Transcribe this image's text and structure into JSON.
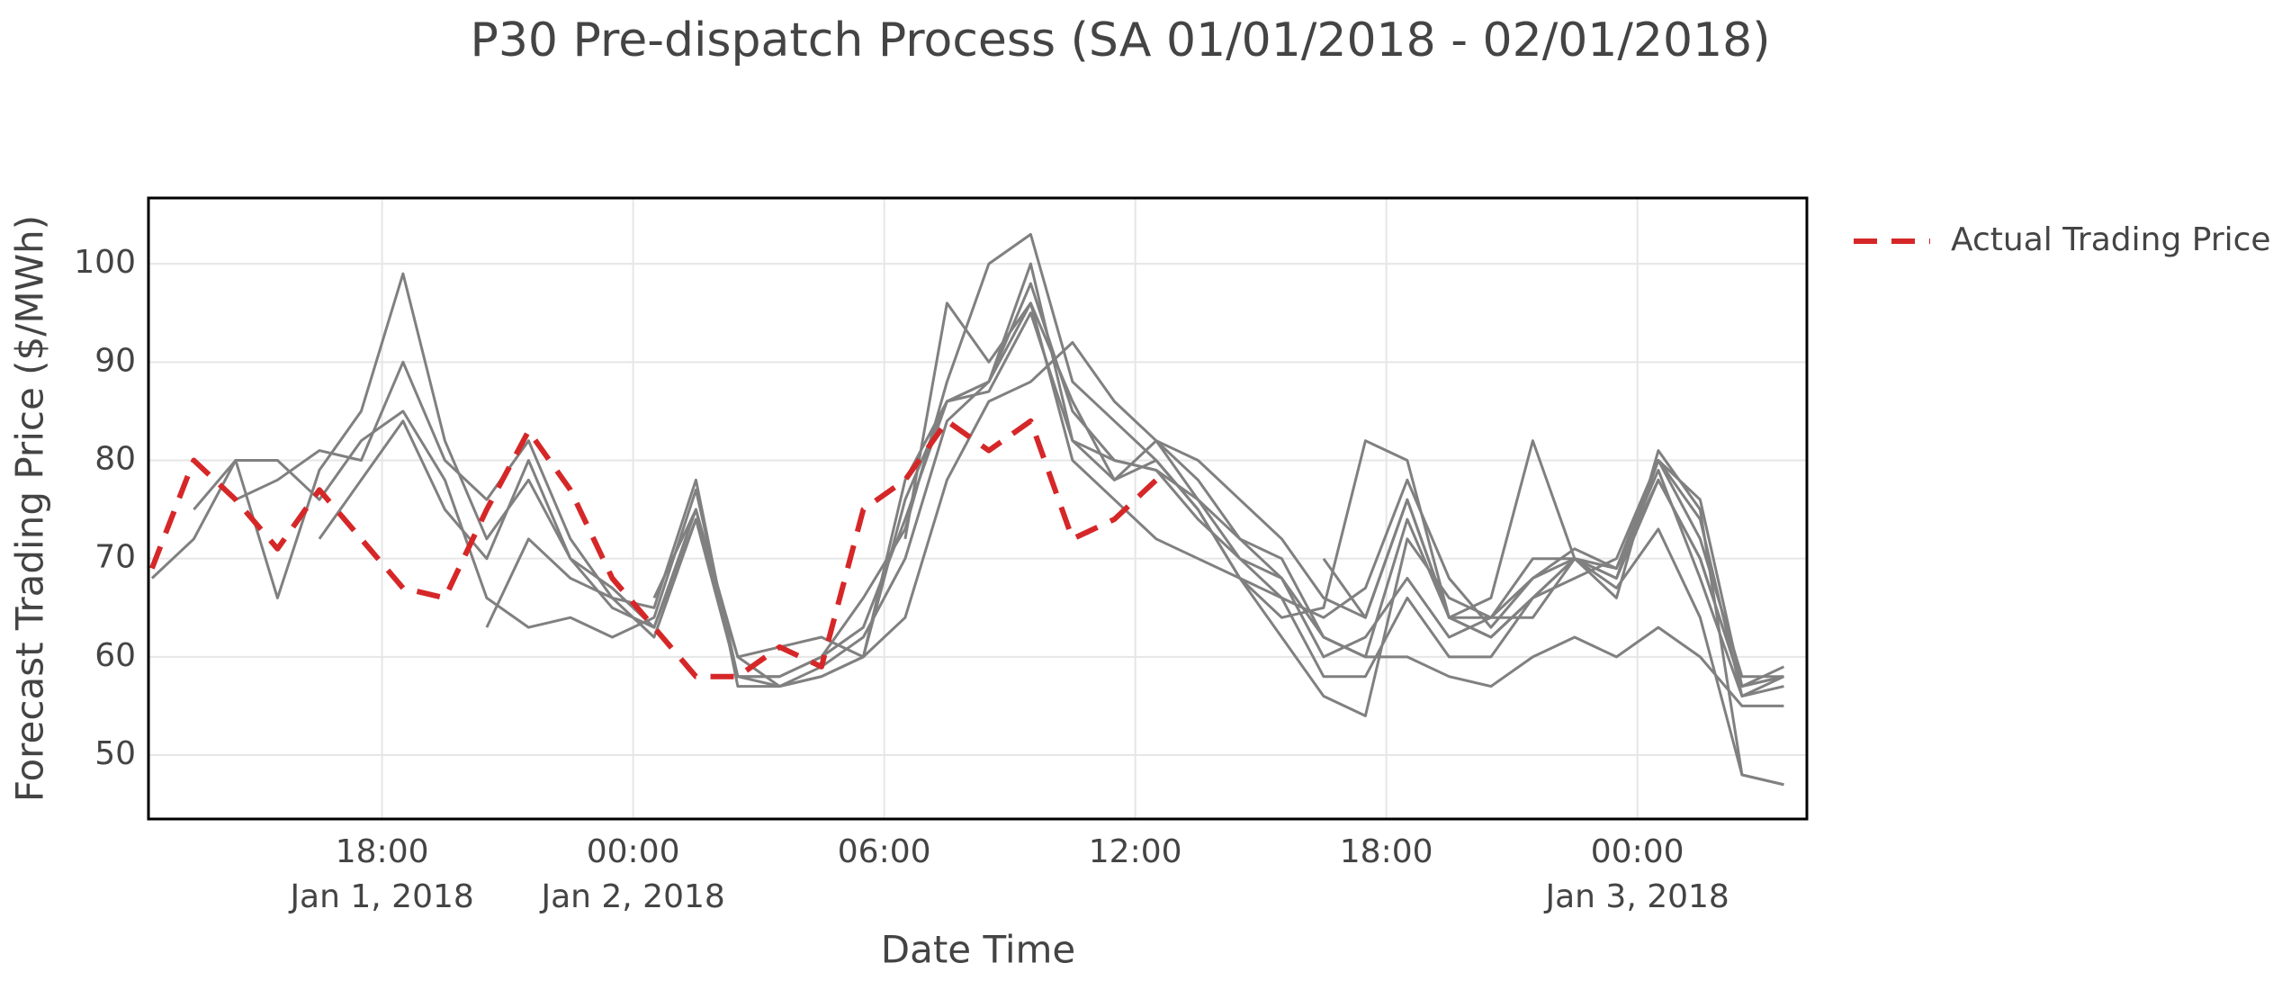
{
  "chart_data": {
    "type": "line",
    "title": "P30 Pre-dispatch Process (SA 01/01/2018 - 02/01/2018)",
    "x_label": "Date Time",
    "y_label": "Forecast Trading Price ($/MWh)",
    "x": [
      "2018-01-01 12:30",
      "2018-01-01 13:30",
      "2018-01-01 14:30",
      "2018-01-01 15:30",
      "2018-01-01 16:30",
      "2018-01-01 17:30",
      "2018-01-01 18:30",
      "2018-01-01 19:30",
      "2018-01-01 20:30",
      "2018-01-01 21:30",
      "2018-01-01 22:30",
      "2018-01-01 23:30",
      "2018-01-02 00:30",
      "2018-01-02 01:30",
      "2018-01-02 02:30",
      "2018-01-02 03:30",
      "2018-01-02 04:30",
      "2018-01-02 05:30",
      "2018-01-02 06:30",
      "2018-01-02 07:30",
      "2018-01-02 08:30",
      "2018-01-02 09:30",
      "2018-01-02 10:30",
      "2018-01-02 11:30",
      "2018-01-02 12:30",
      "2018-01-02 13:30",
      "2018-01-02 14:30",
      "2018-01-02 15:30",
      "2018-01-02 16:30",
      "2018-01-02 17:30",
      "2018-01-02 18:30",
      "2018-01-02 19:30",
      "2018-01-02 20:30",
      "2018-01-02 21:30",
      "2018-01-02 22:30",
      "2018-01-02 23:30",
      "2018-01-03 00:30",
      "2018-01-03 01:30",
      "2018-01-03 02:30",
      "2018-01-03 03:30"
    ],
    "series": [
      {
        "color": "#808080",
        "values": [
          68,
          72,
          80,
          80,
          76,
          82,
          85,
          78,
          66,
          63,
          64,
          62,
          64,
          77,
          58,
          57,
          58,
          60,
          64,
          78,
          86,
          88,
          92,
          86,
          82,
          80,
          76,
          72,
          66,
          64,
          76,
          64,
          64,
          70,
          70,
          68,
          80,
          72,
          58,
          58
        ]
      },
      {
        "color": "#808080",
        "values": [
          null,
          75,
          80,
          66,
          79,
          85,
          99,
          82,
          72,
          78,
          70,
          65,
          63,
          75,
          60,
          57,
          58,
          60,
          76,
          86,
          87,
          95,
          82,
          80,
          79,
          74,
          70,
          68,
          60,
          62,
          68,
          62,
          64,
          68,
          70,
          69,
          78,
          70,
          57,
          58
        ]
      },
      {
        "color": "#808080",
        "values": [
          null,
          null,
          76,
          78,
          81,
          80,
          90,
          80,
          76,
          82,
          72,
          66,
          65,
          78,
          57,
          57,
          59,
          62,
          70,
          84,
          88,
          98,
          85,
          80,
          79,
          76,
          72,
          70,
          62,
          60,
          74,
          64,
          62,
          66,
          70,
          69,
          79,
          68,
          56,
          57
        ]
      },
      {
        "color": "#808080",
        "values": [
          null,
          null,
          null,
          null,
          72,
          78,
          84,
          75,
          70,
          80,
          70,
          67,
          63,
          74,
          58,
          58,
          60,
          63,
          74,
          86,
          88,
          96,
          86,
          78,
          80,
          75,
          68,
          66,
          58,
          58,
          66,
          60,
          60,
          66,
          68,
          70,
          80,
          76,
          57,
          59
        ]
      },
      {
        "color": "#808080",
        "values": [
          null,
          null,
          null,
          null,
          null,
          null,
          null,
          null,
          63,
          72,
          68,
          66,
          62,
          74,
          60,
          61,
          62,
          60,
          78,
          86,
          88,
          100,
          82,
          78,
          82,
          76,
          70,
          66,
          64,
          67,
          78,
          68,
          63,
          68,
          71,
          69,
          80,
          74,
          56,
          58
        ]
      },
      {
        "color": "#808080",
        "values": [
          null,
          null,
          null,
          null,
          null,
          null,
          null,
          null,
          null,
          null,
          null,
          null,
          66,
          75,
          58,
          58,
          60,
          66,
          73,
          88,
          100,
          103,
          88,
          84,
          80,
          75,
          68,
          62,
          56,
          54,
          72,
          66,
          64,
          64,
          70,
          67,
          73,
          64,
          48,
          47
        ]
      },
      {
        "color": "#808080",
        "values": [
          null,
          null,
          null,
          null,
          null,
          null,
          null,
          null,
          null,
          null,
          null,
          null,
          null,
          null,
          null,
          null,
          null,
          null,
          72,
          96,
          90,
          96,
          80,
          76,
          72,
          70,
          68,
          64,
          65,
          82,
          80,
          64,
          66,
          82,
          70,
          66,
          81,
          75,
          48,
          47
        ]
      },
      {
        "color": "#808080",
        "values": [
          null,
          null,
          null,
          null,
          null,
          null,
          null,
          null,
          null,
          null,
          null,
          null,
          null,
          null,
          null,
          null,
          null,
          null,
          null,
          null,
          null,
          null,
          null,
          null,
          82,
          78,
          72,
          68,
          62,
          60,
          60,
          58,
          57,
          60,
          62,
          60,
          63,
          60,
          55,
          55
        ]
      },
      {
        "color": "#808080",
        "values": [
          null,
          null,
          null,
          null,
          null,
          null,
          null,
          null,
          null,
          null,
          null,
          null,
          null,
          null,
          null,
          null,
          null,
          null,
          null,
          null,
          null,
          null,
          null,
          null,
          null,
          null,
          null,
          null,
          70,
          64,
          76,
          64,
          62,
          66,
          70,
          68,
          78,
          70,
          57,
          58
        ]
      },
      {
        "name": "Actual Trading Price",
        "color": "#d62728",
        "dash": true,
        "values": [
          69,
          80,
          76,
          71,
          77,
          72,
          67,
          66,
          75,
          83,
          77,
          68,
          63,
          58,
          58,
          61,
          59,
          75,
          78,
          84,
          81,
          84,
          72,
          74,
          78,
          null,
          null,
          null,
          null,
          null,
          null,
          null,
          null,
          null,
          null,
          null,
          null,
          null,
          null,
          null
        ]
      }
    ],
    "xlim": [
      "2018-01-01 12:25",
      "2018-01-03 04:03"
    ],
    "xticks": [
      {
        "value": "2018-01-01 18:00",
        "label": "18:00\nJan 1, 2018"
      },
      {
        "value": "2018-01-02 00:00",
        "label": "00:00\nJan 2, 2018"
      },
      {
        "value": "2018-01-02 06:00",
        "label": "06:00"
      },
      {
        "value": "2018-01-02 12:00",
        "label": "12:00"
      },
      {
        "value": "2018-01-02 18:00",
        "label": "18:00"
      },
      {
        "value": "2018-01-03 00:00",
        "label": "00:00\nJan 3, 2018"
      }
    ],
    "ylim": [
      43.5,
      106.7
    ],
    "yticks": [
      50,
      60,
      70,
      80,
      90,
      100
    ],
    "grid": true,
    "legend": "outside-right"
  }
}
